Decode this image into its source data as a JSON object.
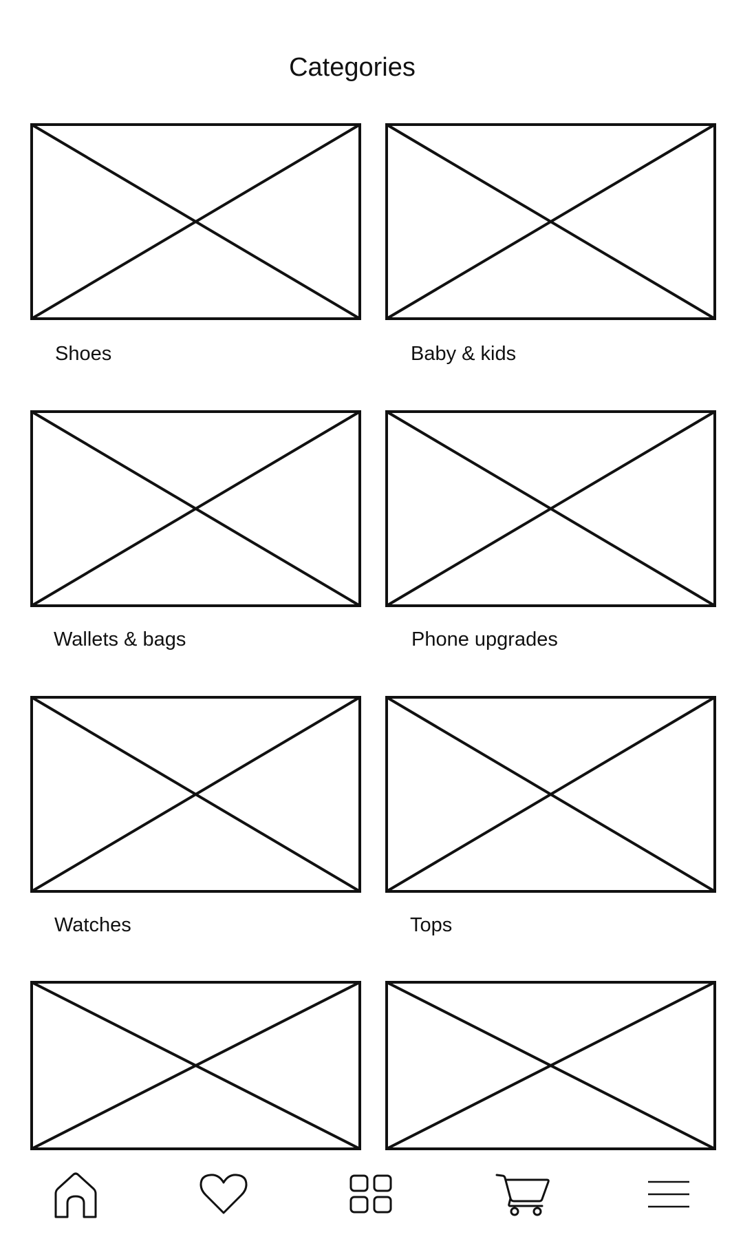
{
  "header": {
    "title": "Categories"
  },
  "categories": [
    {
      "label": "Shoes"
    },
    {
      "label": "Baby & kids"
    },
    {
      "label": "Wallets & bags"
    },
    {
      "label": "Phone upgrades"
    },
    {
      "label": "Watches"
    },
    {
      "label": "Tops"
    },
    {
      "label": ""
    },
    {
      "label": ""
    }
  ],
  "bottom_nav": {
    "items": [
      {
        "icon": "home-icon"
      },
      {
        "icon": "heart-icon"
      },
      {
        "icon": "grid-icon"
      },
      {
        "icon": "cart-icon"
      },
      {
        "icon": "menu-icon"
      }
    ]
  },
  "colors": {
    "background": "#ffffff",
    "stroke": "#111111"
  }
}
